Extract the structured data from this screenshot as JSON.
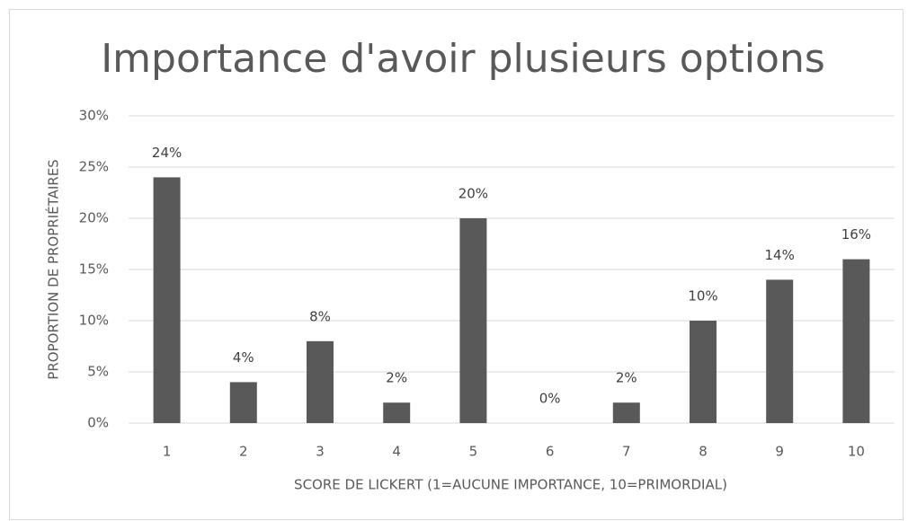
{
  "chart_data": {
    "type": "bar",
    "title": "Importance d'avoir plusieurs options",
    "x_label": "SCORE DE LICKERT (1=AUCUNE IMPORTANCE, 10=PRIMORDIAL)",
    "y_label": "PROPORTION DE PROPRIÉTAIRES",
    "categories": [
      "1",
      "2",
      "3",
      "4",
      "5",
      "6",
      "7",
      "8",
      "9",
      "10"
    ],
    "values": [
      24,
      4,
      8,
      2,
      20,
      0,
      2,
      10,
      14,
      16
    ],
    "value_labels": [
      "24%",
      "4%",
      "8%",
      "2%",
      "20%",
      "0%",
      "2%",
      "10%",
      "14%",
      "16%"
    ],
    "color": "#595959",
    "ylim": [
      0,
      30
    ],
    "yticks": [
      {
        "value": 0,
        "label": "0%"
      },
      {
        "value": 5,
        "label": "5%"
      },
      {
        "value": 10,
        "label": "10%"
      },
      {
        "value": 15,
        "label": "15%"
      },
      {
        "value": 20,
        "label": "20%"
      },
      {
        "value": 25,
        "label": "25%"
      },
      {
        "value": 30,
        "label": "30%"
      }
    ],
    "grid": true
  }
}
